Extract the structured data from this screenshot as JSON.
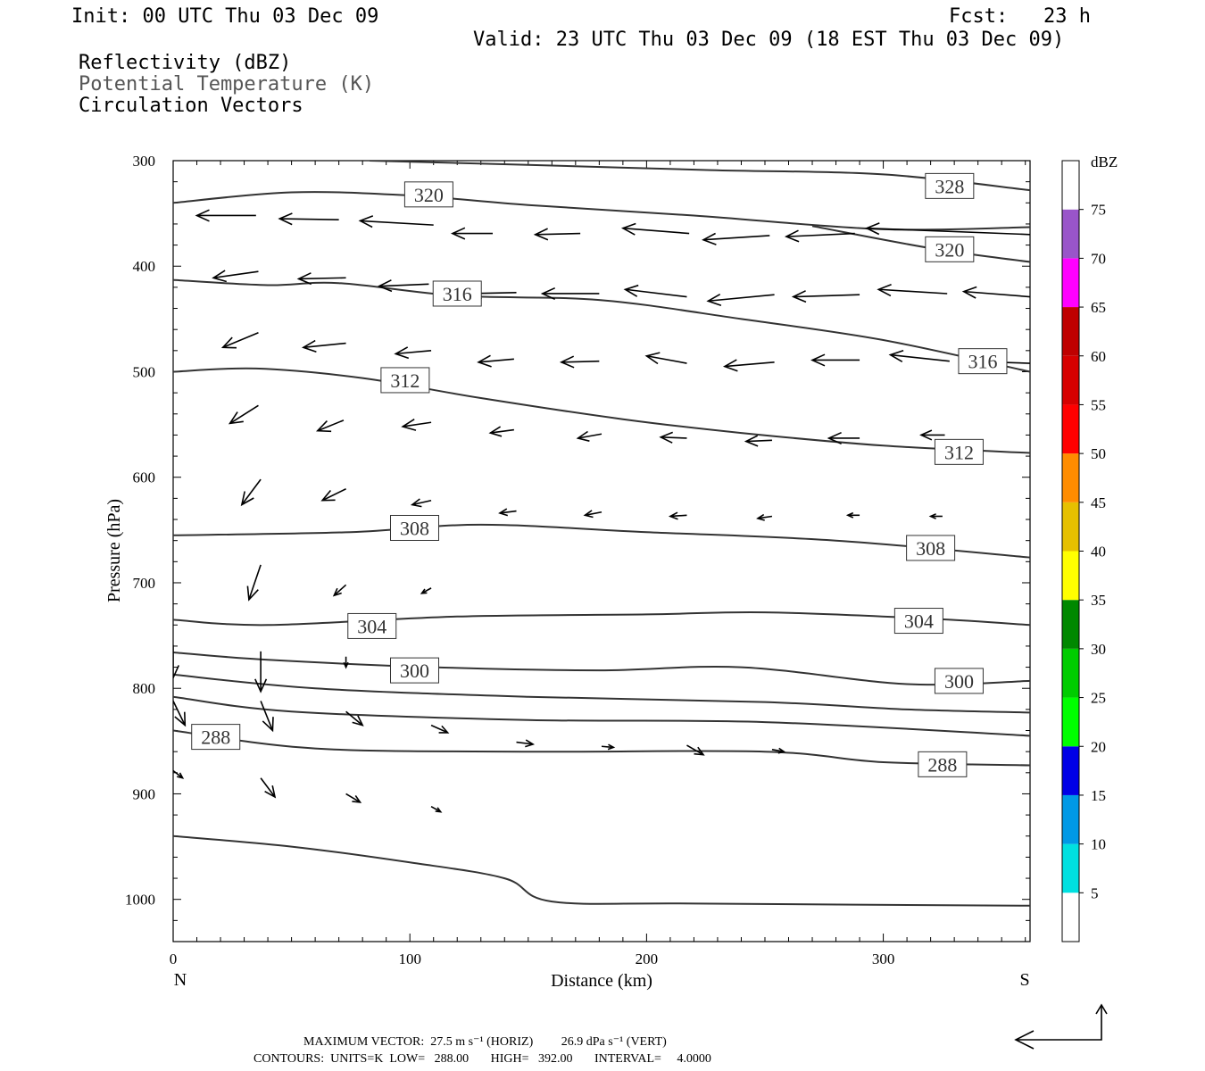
{
  "header": {
    "init": "Init: 00 UTC Thu 03 Dec 09",
    "fcst": "Fcst:   23 h",
    "valid": "Valid: 23 UTC Thu 03 Dec 09 (18 EST Thu 03 Dec 09)"
  },
  "legend": {
    "items": [
      {
        "label": "Reflectivity (dBZ)",
        "color": "#000000"
      },
      {
        "label": "Potential Temperature (K)",
        "color": "#555555"
      },
      {
        "label": "Circulation Vectors",
        "color": "#000000"
      }
    ]
  },
  "chart_data": {
    "type": "cross-section",
    "xlabel": "Distance (km)",
    "ylabel": "Pressure (hPa)",
    "xlim": [
      0,
      362
    ],
    "ylim": [
      1040,
      300
    ],
    "x_ticks": [
      "0",
      "100",
      "200",
      "300"
    ],
    "y_ticks": [
      "300",
      "400",
      "500",
      "600",
      "700",
      "800",
      "900",
      "1000"
    ],
    "x_end_labels": {
      "left": "N",
      "right": "S"
    },
    "isentropes": [
      {
        "label": "328",
        "points": [
          [
            83,
            300
          ],
          [
            150,
            304
          ],
          [
            227,
            309
          ],
          [
            300,
            313
          ],
          [
            362,
            328
          ]
        ]
      },
      {
        "label": "320",
        "points": [
          [
            0,
            340
          ],
          [
            50,
            330
          ],
          [
            100,
            333
          ],
          [
            150,
            342
          ],
          [
            220,
            352
          ],
          [
            300,
            365
          ],
          [
            362,
            363
          ]
        ]
      },
      {
        "label": "320",
        "points": [
          [
            270,
            362
          ],
          [
            320,
            383
          ],
          [
            362,
            396
          ]
        ]
      },
      {
        "label": "316",
        "points": [
          [
            0,
            413
          ],
          [
            40,
            418
          ],
          [
            70,
            416
          ],
          [
            120,
            428
          ],
          [
            180,
            432
          ],
          [
            240,
            450
          ],
          [
            300,
            470
          ],
          [
            362,
            500
          ]
        ]
      },
      {
        "label": "312",
        "points": [
          [
            0,
            500
          ],
          [
            35,
            497
          ],
          [
            80,
            506
          ],
          [
            130,
            525
          ],
          [
            190,
            545
          ],
          [
            240,
            558
          ],
          [
            300,
            570
          ],
          [
            362,
            577
          ]
        ]
      },
      {
        "label": "308",
        "points": [
          [
            0,
            655
          ],
          [
            75,
            652
          ],
          [
            130,
            645
          ],
          [
            200,
            652
          ],
          [
            280,
            660
          ],
          [
            362,
            676
          ]
        ]
      },
      {
        "label": "304",
        "points": [
          [
            0,
            735
          ],
          [
            40,
            740
          ],
          [
            120,
            732
          ],
          [
            200,
            730
          ],
          [
            250,
            728
          ],
          [
            320,
            734
          ],
          [
            362,
            740
          ]
        ]
      },
      {
        "label": "300",
        "points": [
          [
            0,
            766
          ],
          [
            40,
            773
          ],
          [
            110,
            780
          ],
          [
            180,
            783
          ],
          [
            240,
            780
          ],
          [
            310,
            796
          ],
          [
            362,
            793
          ]
        ]
      },
      {
        "label": "",
        "points": [
          [
            0,
            787
          ],
          [
            60,
            800
          ],
          [
            150,
            808
          ],
          [
            250,
            813
          ],
          [
            310,
            820
          ],
          [
            362,
            823
          ]
        ]
      },
      {
        "label": "",
        "points": [
          [
            0,
            808
          ],
          [
            50,
            822
          ],
          [
            150,
            830
          ],
          [
            250,
            832
          ],
          [
            362,
            845
          ]
        ]
      },
      {
        "label": "288",
        "points": [
          [
            0,
            840
          ],
          [
            60,
            857
          ],
          [
            150,
            860
          ],
          [
            250,
            860
          ],
          [
            300,
            870
          ],
          [
            362,
            873
          ]
        ]
      },
      {
        "label": "",
        "points": [
          [
            0,
            940
          ],
          [
            50,
            950
          ],
          [
            100,
            965
          ],
          [
            140,
            980
          ],
          [
            160,
            1002
          ],
          [
            220,
            1004
          ],
          [
            362,
            1006
          ]
        ]
      }
    ],
    "contour_labels": [
      {
        "text": "328",
        "x": 328,
        "p": 324
      },
      {
        "text": "320",
        "x": 108,
        "p": 332
      },
      {
        "text": "320",
        "x": 328,
        "p": 384
      },
      {
        "text": "316",
        "x": 120,
        "p": 426
      },
      {
        "text": "316",
        "x": 342,
        "p": 490
      },
      {
        "text": "312",
        "x": 98,
        "p": 508
      },
      {
        "text": "312",
        "x": 332,
        "p": 576
      },
      {
        "text": "308",
        "x": 102,
        "p": 648
      },
      {
        "text": "308",
        "x": 320,
        "p": 667
      },
      {
        "text": "304",
        "x": 84,
        "p": 741
      },
      {
        "text": "304",
        "x": 315,
        "p": 736
      },
      {
        "text": "300",
        "x": 102,
        "p": 783
      },
      {
        "text": "300",
        "x": 332,
        "p": 793
      },
      {
        "text": "288",
        "x": 18,
        "p": 846
      },
      {
        "text": "288",
        "x": 325,
        "p": 872
      }
    ],
    "vectors": [
      [
        35,
        352,
        10,
        352
      ],
      [
        70,
        356,
        45,
        355
      ],
      [
        110,
        361,
        79,
        357
      ],
      [
        135,
        369,
        118,
        369
      ],
      [
        172,
        369,
        153,
        370
      ],
      [
        218,
        369,
        190,
        364
      ],
      [
        252,
        371,
        224,
        375
      ],
      [
        288,
        369,
        259,
        372
      ],
      [
        362,
        370,
        293,
        364
      ],
      [
        36,
        405,
        17,
        411
      ],
      [
        73,
        411,
        53,
        412
      ],
      [
        108,
        417,
        87,
        419
      ],
      [
        145,
        425,
        125,
        426
      ],
      [
        180,
        426,
        156,
        426
      ],
      [
        217,
        429,
        191,
        422
      ],
      [
        254,
        427,
        226,
        433
      ],
      [
        290,
        427,
        262,
        429
      ],
      [
        327,
        426,
        298,
        422
      ],
      [
        362,
        429,
        334,
        424
      ],
      [
        36,
        463,
        21,
        477
      ],
      [
        73,
        473,
        55,
        477
      ],
      [
        109,
        480,
        94,
        483
      ],
      [
        144,
        488,
        129,
        491
      ],
      [
        180,
        490,
        164,
        491
      ],
      [
        217,
        492,
        200,
        485
      ],
      [
        254,
        491,
        233,
        495
      ],
      [
        290,
        489,
        270,
        489
      ],
      [
        328,
        490,
        303,
        484
      ],
      [
        362,
        492,
        334,
        490
      ],
      [
        36,
        532,
        24,
        549
      ],
      [
        72,
        546,
        61,
        556
      ],
      [
        109,
        548,
        97,
        552
      ],
      [
        144,
        555,
        134,
        558
      ],
      [
        181,
        559,
        171,
        563
      ],
      [
        217,
        563,
        206,
        562
      ],
      [
        253,
        565,
        242,
        566
      ],
      [
        290,
        563,
        277,
        563
      ],
      [
        326,
        560,
        316,
        560
      ],
      [
        37,
        602,
        29,
        626
      ],
      [
        73,
        611,
        63,
        622
      ],
      [
        109,
        622,
        101,
        626
      ],
      [
        145,
        632,
        138,
        634
      ],
      [
        181,
        633,
        174,
        636
      ],
      [
        217,
        636,
        210,
        637
      ],
      [
        253,
        637,
        247,
        639
      ],
      [
        290,
        636,
        285,
        636
      ],
      [
        325,
        637,
        320,
        637
      ],
      [
        37,
        683,
        32,
        716
      ],
      [
        73,
        702,
        68,
        712
      ],
      [
        109,
        705,
        105,
        710
      ],
      [
        0,
        759,
        0,
        790
      ],
      [
        37,
        765,
        37,
        803
      ],
      [
        73,
        770,
        73,
        780
      ],
      [
        0,
        812,
        5,
        835
      ],
      [
        37,
        812,
        42,
        840
      ],
      [
        73,
        822,
        80,
        835
      ],
      [
        109,
        835,
        116,
        842
      ],
      [
        145,
        851,
        152,
        853
      ],
      [
        181,
        855,
        186,
        856
      ],
      [
        217,
        854,
        224,
        863
      ],
      [
        253,
        858,
        258,
        860
      ],
      [
        0,
        878,
        4,
        885
      ],
      [
        37,
        885,
        43,
        903
      ],
      [
        73,
        900,
        79,
        908
      ],
      [
        109,
        912,
        113,
        917
      ]
    ],
    "colorbar": {
      "units": "dBZ",
      "colors": [
        "#ffffff",
        "#00e0e0",
        "#0099e6",
        "#0000e6",
        "#00ff00",
        "#00cc00",
        "#008800",
        "#ffff00",
        "#e6c000",
        "#ff8c00",
        "#ff0000",
        "#d60000",
        "#bf0000",
        "#ff00ff",
        "#9955c9",
        "#ffffff"
      ],
      "labels": [
        "5",
        "10",
        "15",
        "20",
        "25",
        "30",
        "35",
        "40",
        "45",
        "50",
        "55",
        "60",
        "65",
        "70",
        "75"
      ]
    }
  },
  "footer": {
    "max_vector": "MAXIMUM VECTOR:  27.5 m s⁻¹ (HORIZ)         26.9 dPa s⁻¹ (VERT)",
    "contours": "CONTOURS:  UNITS=K  LOW=   288.00       HIGH=   392.00       INTERVAL=     4.0000"
  }
}
